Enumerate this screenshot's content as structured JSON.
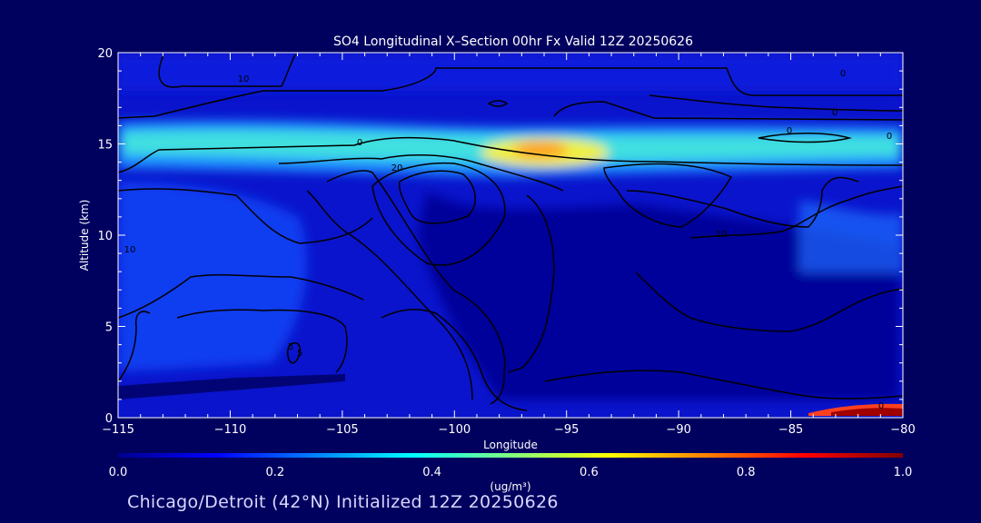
{
  "chart_data": {
    "type": "heatmap",
    "title": "SO4 Longitudinal X–Section 00hr  Fx Valid 12Z 20250626",
    "xlabel": "Longitude",
    "ylabel": "Altitude (km)",
    "xlim": [
      -115,
      -80
    ],
    "ylim": [
      0,
      20
    ],
    "x_ticks": [
      -115,
      -110,
      -105,
      -100,
      -95,
      -90,
      -85,
      -80
    ],
    "x_tick_labels": [
      "−115",
      "−110",
      "−105",
      "−100",
      "−95",
      "−90",
      "−85",
      "−80"
    ],
    "y_ticks": [
      0,
      5,
      10,
      15,
      20
    ],
    "y_tick_labels": [
      "0",
      "5",
      "10",
      "15",
      "20"
    ],
    "colorbar": {
      "label": "(ug/m³)",
      "min": 0.0,
      "max": 1.0,
      "ticks": [
        0.0,
        0.2,
        0.4,
        0.6,
        0.8,
        1.0
      ],
      "tick_labels": [
        "0.0",
        "0.2",
        "0.4",
        "0.6",
        "0.8",
        "1.0"
      ],
      "colors": [
        "#00008f",
        "#0000ff",
        "#0080ff",
        "#00ffff",
        "#80ff80",
        "#ffff00",
        "#ff8000",
        "#ff0000",
        "#800000"
      ]
    },
    "field_features": [
      {
        "lon": -95,
        "alt": 14.5,
        "value": 0.7
      },
      {
        "lon": -100,
        "alt": 14.8,
        "value": 0.5
      },
      {
        "lon": -110,
        "alt": 15.0,
        "value": 0.45
      },
      {
        "lon": -87,
        "alt": 15.0,
        "value": 0.45
      },
      {
        "lon": -81,
        "alt": 0.4,
        "value": 1.0
      }
    ],
    "contour_labels": [
      "10",
      "0",
      "10",
      "0",
      "0",
      "20",
      "10",
      "0",
      "5",
      "5",
      "0",
      "0"
    ]
  },
  "footer": "Chicago/Detroit (42°N) Initialized 12Z 20250626"
}
